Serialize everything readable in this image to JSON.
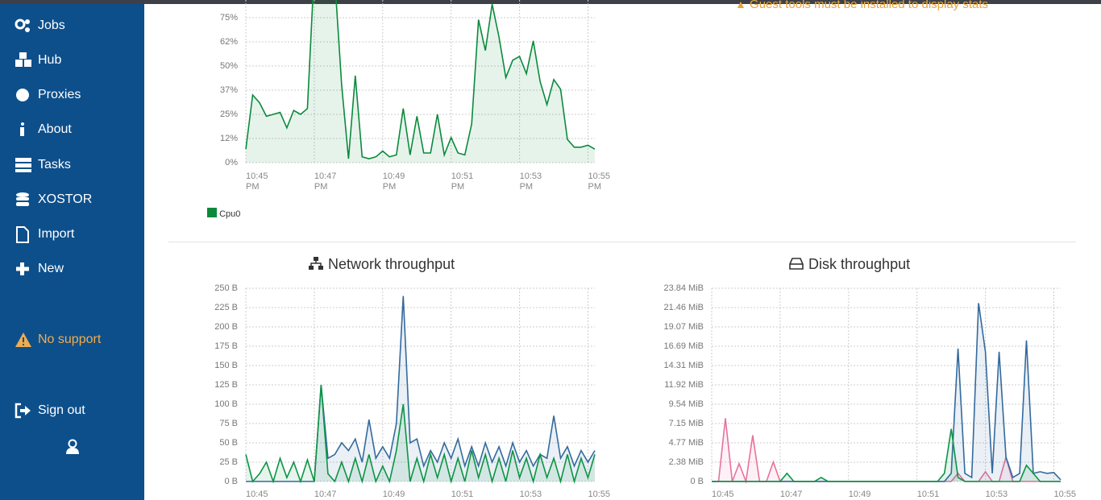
{
  "sidebar": {
    "items": [
      "Jobs",
      "Hub",
      "Proxies",
      "About",
      "Tasks",
      "XOSTOR",
      "Import",
      "New"
    ],
    "support": "No support",
    "sign_out": "Sign out"
  },
  "notice": "Guest tools must be installed to display stats",
  "chart_data": [
    {
      "type": "line",
      "x": [
        0,
        0.2,
        0.4,
        0.6,
        0.8,
        1,
        1.2,
        1.4,
        1.6,
        1.8,
        2,
        2.2,
        2.4,
        2.6,
        2.8,
        3,
        3.2,
        3.4,
        3.6,
        3.8,
        4,
        4.2,
        4.4,
        4.6,
        4.8,
        5,
        5.2,
        5.4,
        5.6,
        5.8,
        6,
        6.2,
        6.4,
        6.6,
        6.8,
        7,
        7.2,
        7.4,
        7.6,
        7.8,
        8,
        8.2,
        8.4,
        8.6,
        8.8,
        9,
        9.2,
        9.4,
        9.6,
        9.8,
        10,
        10.2
      ],
      "series": [
        {
          "name": "Cpu0",
          "color": "#0b8a3c",
          "values": [
            7,
            35,
            31,
            24,
            25,
            26,
            18,
            27,
            25,
            28,
            100,
            100,
            100,
            95,
            40,
            2,
            45,
            3,
            2,
            3,
            6,
            3,
            4,
            28,
            4,
            24,
            5,
            5,
            25,
            4,
            13,
            5,
            4,
            20,
            74,
            58,
            82,
            65,
            44,
            53,
            55,
            46,
            63,
            42,
            30,
            43,
            38,
            12,
            8,
            8,
            9,
            7
          ]
        }
      ],
      "xlim": [
        0,
        10.2
      ],
      "xticks": [
        {
          "value": 0,
          "label": "10:45 PM"
        },
        {
          "value": 2,
          "label": "10:47 PM"
        },
        {
          "value": 4,
          "label": "10:49 PM"
        },
        {
          "value": 6,
          "label": "10:51 PM"
        },
        {
          "value": 8,
          "label": "10:53 PM"
        },
        {
          "value": 10,
          "label": "10:55 PM"
        }
      ],
      "ylim": [
        0,
        100
      ],
      "yticks": [
        {
          "value": 0,
          "label": "0%"
        },
        {
          "value": 12.5,
          "label": "12%"
        },
        {
          "value": 25,
          "label": "25%"
        },
        {
          "value": 37.5,
          "label": "37%"
        },
        {
          "value": 50,
          "label": "50%"
        },
        {
          "value": 62.5,
          "label": "62%"
        },
        {
          "value": 75,
          "label": "75%"
        }
      ],
      "grid": true
    },
    {
      "type": "line",
      "title": "Network throughput",
      "x": [
        0,
        0.2,
        0.4,
        0.6,
        0.8,
        1,
        1.2,
        1.4,
        1.6,
        1.8,
        2,
        2.2,
        2.4,
        2.6,
        2.8,
        3,
        3.2,
        3.4,
        3.6,
        3.8,
        4,
        4.2,
        4.4,
        4.6,
        4.8,
        5,
        5.2,
        5.4,
        5.6,
        5.8,
        6,
        6.2,
        6.4,
        6.6,
        6.8,
        7,
        7.2,
        7.4,
        7.6,
        7.8,
        8,
        8.2,
        8.4,
        8.6,
        8.8,
        9,
        9.2,
        9.4,
        9.6,
        9.8,
        10,
        10.2
      ],
      "series": [
        {
          "color": "#336a9e",
          "values": [
            0,
            0,
            0,
            0,
            0,
            0,
            0,
            0,
            0,
            0,
            0,
            125,
            30,
            35,
            50,
            40,
            55,
            25,
            80,
            30,
            45,
            30,
            75,
            240,
            50,
            55,
            20,
            40,
            25,
            50,
            30,
            55,
            20,
            45,
            20,
            50,
            25,
            45,
            20,
            50,
            25,
            40,
            20,
            35,
            30,
            85,
            30,
            45,
            20,
            40,
            25,
            40
          ]
        },
        {
          "color": "#0b9444",
          "values": [
            35,
            0,
            10,
            25,
            0,
            30,
            5,
            25,
            0,
            28,
            0,
            125,
            10,
            0,
            25,
            0,
            30,
            0,
            35,
            0,
            20,
            0,
            40,
            100,
            0,
            30,
            0,
            35,
            5,
            35,
            0,
            30,
            0,
            40,
            5,
            35,
            0,
            30,
            0,
            40,
            5,
            30,
            0,
            35,
            5,
            30,
            0,
            35,
            0,
            30,
            5,
            35
          ]
        }
      ],
      "xlim": [
        0,
        10.2
      ],
      "xticks": [
        {
          "value": 0,
          "label": "10:45"
        },
        {
          "value": 2,
          "label": "10:47"
        },
        {
          "value": 4,
          "label": "10:49"
        },
        {
          "value": 6,
          "label": "10:51"
        },
        {
          "value": 8,
          "label": "10:53"
        },
        {
          "value": 10,
          "label": "10:55"
        }
      ],
      "ylim": [
        0,
        250
      ],
      "yticks": [
        {
          "value": 0,
          "label": "0 B"
        },
        {
          "value": 25,
          "label": "25 B"
        },
        {
          "value": 50,
          "label": "50 B"
        },
        {
          "value": 75,
          "label": "75 B"
        },
        {
          "value": 100,
          "label": "100 B"
        },
        {
          "value": 125,
          "label": "125 B"
        },
        {
          "value": 150,
          "label": "150 B"
        },
        {
          "value": 175,
          "label": "175 B"
        },
        {
          "value": 200,
          "label": "200 B"
        },
        {
          "value": 225,
          "label": "225 B"
        },
        {
          "value": 250,
          "label": "250 B"
        }
      ],
      "grid": true
    },
    {
      "type": "line",
      "title": "Disk throughput",
      "x": [
        0,
        0.2,
        0.4,
        0.6,
        0.8,
        1,
        1.2,
        1.4,
        1.6,
        1.8,
        2,
        2.2,
        2.4,
        2.6,
        2.8,
        3,
        3.2,
        3.4,
        3.6,
        3.8,
        4,
        4.2,
        4.4,
        4.6,
        4.8,
        5,
        5.2,
        5.4,
        5.6,
        5.8,
        6,
        6.2,
        6.4,
        6.6,
        6.8,
        7,
        7.2,
        7.4,
        7.6,
        7.8,
        8,
        8.2,
        8.4,
        8.6,
        8.8,
        9,
        9.2,
        9.4,
        9.6,
        9.8,
        10,
        10.2
      ],
      "series": [
        {
          "color": "#e8719f",
          "values": [
            0,
            0,
            7.8,
            0,
            2.2,
            0,
            5.7,
            0,
            0,
            2.4,
            0,
            0,
            0,
            0,
            0,
            0,
            0,
            0,
            0,
            0,
            0,
            0,
            0,
            0,
            0,
            0,
            0,
            0,
            0,
            0,
            0,
            0,
            0,
            0,
            0,
            0,
            1,
            0,
            0,
            0,
            1.2,
            0,
            0,
            3,
            0,
            0,
            0,
            0,
            0,
            0,
            0,
            0
          ]
        },
        {
          "color": "#336a9e",
          "values": [
            0,
            0,
            0,
            0,
            0,
            0,
            0,
            0,
            0,
            0,
            0,
            0,
            0,
            0,
            0,
            0,
            0,
            0,
            0,
            0,
            0,
            0,
            0,
            0,
            0,
            0,
            0,
            0,
            0,
            0,
            0,
            0,
            0,
            0,
            0,
            1,
            16.4,
            1,
            0.5,
            22,
            16,
            1,
            16,
            3,
            0.5,
            1,
            17.4,
            1,
            1.2,
            1,
            1.1,
            0.2
          ]
        },
        {
          "color": "#0b9444",
          "values": [
            0,
            0,
            0,
            0,
            0,
            0,
            0,
            0,
            0,
            0,
            0,
            1,
            0,
            0,
            0,
            0,
            0.5,
            0,
            0,
            0,
            0,
            0,
            0,
            0,
            0,
            0,
            0,
            0,
            0,
            0,
            0,
            0,
            0,
            0,
            1,
            6.5,
            0.5,
            0,
            0,
            0,
            0,
            0,
            0,
            0,
            0,
            0,
            2,
            1,
            0,
            0,
            0,
            0
          ]
        }
      ],
      "xlim": [
        0,
        10.2
      ],
      "xticks": [
        {
          "value": 0,
          "label": "10:45"
        },
        {
          "value": 2,
          "label": "10:47"
        },
        {
          "value": 4,
          "label": "10:49"
        },
        {
          "value": 6,
          "label": "10:51"
        },
        {
          "value": 8,
          "label": "10:53"
        },
        {
          "value": 10,
          "label": "10:55"
        }
      ],
      "ylim": [
        0,
        23.84
      ],
      "yticks": [
        {
          "value": 0,
          "label": "0 B"
        },
        {
          "value": 2.38,
          "label": "2.38 MiB"
        },
        {
          "value": 4.77,
          "label": "4.77 MiB"
        },
        {
          "value": 7.15,
          "label": "7.15 MiB"
        },
        {
          "value": 9.54,
          "label": "9.54 MiB"
        },
        {
          "value": 11.92,
          "label": "11.92 MiB"
        },
        {
          "value": 14.31,
          "label": "14.31 MiB"
        },
        {
          "value": 16.69,
          "label": "16.69 MiB"
        },
        {
          "value": 19.07,
          "label": "19.07 MiB"
        },
        {
          "value": 21.46,
          "label": "21.46 MiB"
        },
        {
          "value": 23.84,
          "label": "23.84 MiB"
        }
      ],
      "grid": true
    }
  ]
}
